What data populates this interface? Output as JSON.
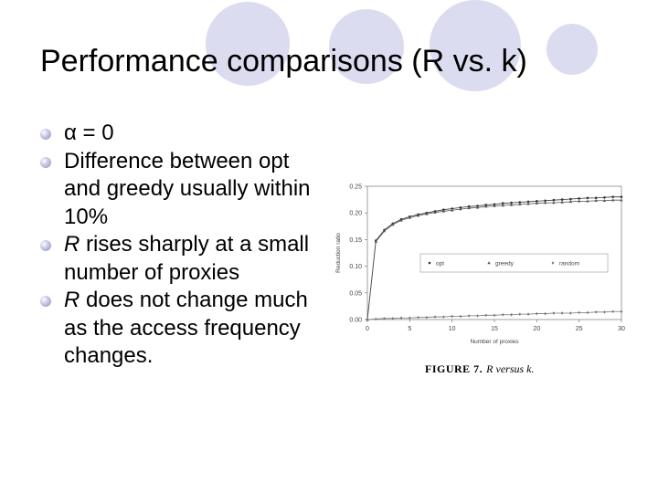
{
  "slide": {
    "title": "Performance comparisons (R vs. k)",
    "bullets": [
      {
        "text": "α = 0"
      },
      {
        "text": "Difference between opt and greedy usually within 10%"
      },
      {
        "italic": "R",
        "text": " rises sharply at a small number of proxies"
      },
      {
        "italic": "R",
        "text": " does not change much as the access frequency changes."
      }
    ]
  },
  "figure": {
    "caption_label": "FIGURE 7.",
    "caption_text": "R versus k."
  },
  "chart_data": {
    "type": "line",
    "xlabel": "Number of proxies",
    "ylabel": "Reduction ratio",
    "xlim": [
      0,
      30
    ],
    "ylim": [
      0,
      0.25
    ],
    "xticks": [
      0,
      5,
      10,
      15,
      20,
      25,
      30
    ],
    "yticks": [
      "0.00",
      "0.05",
      "0.10",
      "0.15",
      "0.20",
      "0.25"
    ],
    "legend_position": "center-right",
    "x": [
      0,
      1,
      2,
      3,
      4,
      5,
      6,
      7,
      8,
      9,
      10,
      11,
      12,
      13,
      14,
      15,
      16,
      17,
      18,
      19,
      20,
      21,
      22,
      23,
      24,
      25,
      26,
      27,
      28,
      29,
      30
    ],
    "series": [
      {
        "name": "opt",
        "marker": "dot",
        "values": [
          0.0,
          0.148,
          0.168,
          0.18,
          0.188,
          0.193,
          0.197,
          0.2,
          0.203,
          0.206,
          0.208,
          0.21,
          0.212,
          0.213,
          0.215,
          0.216,
          0.218,
          0.219,
          0.22,
          0.221,
          0.222,
          0.223,
          0.224,
          0.225,
          0.226,
          0.227,
          0.228,
          0.228,
          0.229,
          0.23,
          0.23
        ]
      },
      {
        "name": "greedy",
        "marker": "triangle",
        "values": [
          0.0,
          0.146,
          0.166,
          0.178,
          0.186,
          0.191,
          0.195,
          0.198,
          0.201,
          0.203,
          0.205,
          0.207,
          0.209,
          0.21,
          0.212,
          0.213,
          0.214,
          0.215,
          0.216,
          0.217,
          0.218,
          0.219,
          0.219,
          0.22,
          0.221,
          0.222,
          0.222,
          0.223,
          0.223,
          0.224,
          0.224
        ]
      },
      {
        "name": "random",
        "marker": "diamond",
        "values": [
          0.0,
          0.001,
          0.002,
          0.002,
          0.003,
          0.003,
          0.004,
          0.004,
          0.005,
          0.005,
          0.006,
          0.006,
          0.007,
          0.007,
          0.008,
          0.008,
          0.009,
          0.009,
          0.01,
          0.01,
          0.011,
          0.011,
          0.012,
          0.012,
          0.012,
          0.013,
          0.013,
          0.014,
          0.014,
          0.015,
          0.015
        ]
      }
    ]
  }
}
